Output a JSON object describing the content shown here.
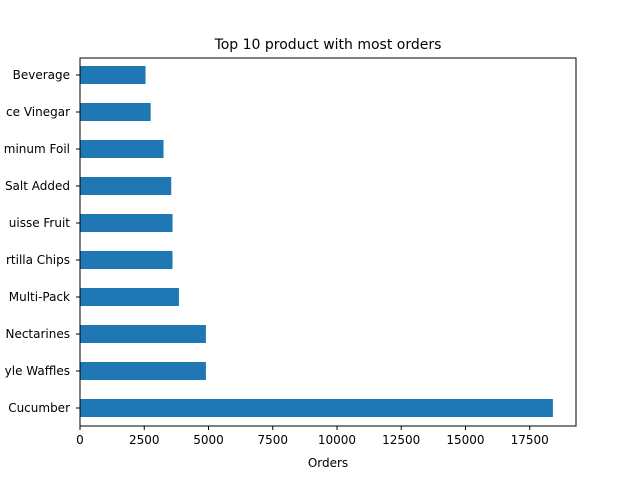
{
  "chart_data": {
    "type": "bar",
    "orientation": "horizontal",
    "title": "Top 10 product with most orders",
    "xlabel": "Orders",
    "ylabel": "",
    "xlim": [
      0,
      19300
    ],
    "xticks": [
      0,
      2500,
      5000,
      7500,
      10000,
      12500,
      15000,
      17500
    ],
    "xtick_labels": [
      "0",
      "2500",
      "5000",
      "7500",
      "10000",
      "12500",
      "15000",
      "17500"
    ],
    "categories": [
      "Cucumber",
      "yle Waffles",
      "Nectarines",
      "Multi-Pack",
      "rtilla Chips",
      "uisse Fruit",
      "Salt Added",
      "minum Foil",
      "ce Vinegar",
      "Beverage"
    ],
    "values": [
      18400,
      4900,
      4900,
      3850,
      3600,
      3600,
      3550,
      3250,
      2750,
      2550
    ],
    "bar_color": "#1f77b4",
    "grid": false,
    "legend": "none"
  }
}
